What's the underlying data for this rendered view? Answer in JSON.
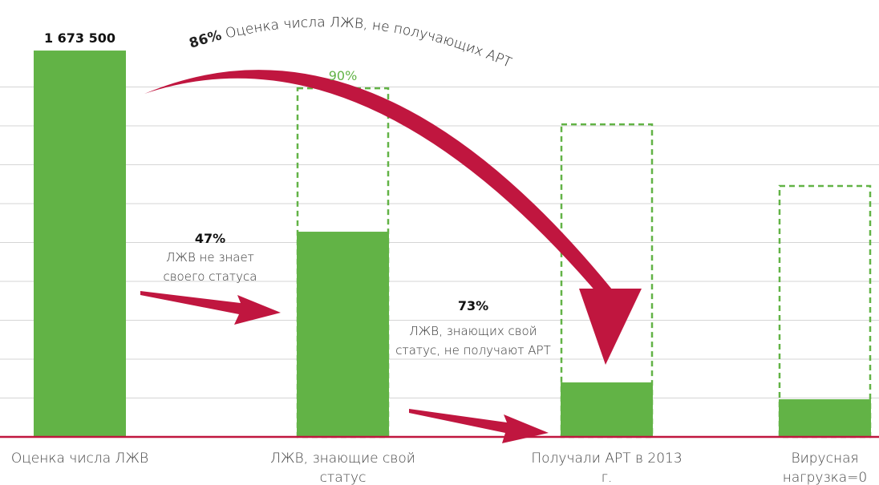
{
  "chart_data": {
    "type": "bar",
    "categories": [
      "Оценка числа ЛЖВ",
      "ЛЖВ, знающие свой статус",
      "Получали АРТ в 2013 г.",
      "Вирусная нагрузка=0"
    ],
    "series": [
      {
        "color": "#62b346",
        "values": [
          1673500,
          888800,
          236000,
          163000
        ],
        "value_labels": [
          "1 673 500",
          null,
          null,
          null
        ]
      },
      {
        "color": "#62b346",
        "style": "dashed",
        "values": [
          null,
          1510000,
          1354000,
          1087000
        ]
      }
    ],
    "target_label": "90%",
    "ylim": [
      0,
      1830000
    ],
    "grid": true,
    "annotations": [
      {
        "percent": "86%",
        "text": "Оценка числа ЛЖВ, не получающих АРТ"
      },
      {
        "percent": "47%",
        "text": "ЛЖВ не знает своего статуса"
      },
      {
        "percent": "73%",
        "text": "ЛЖВ, знающих свой статус, не получают АРТ"
      }
    ]
  }
}
